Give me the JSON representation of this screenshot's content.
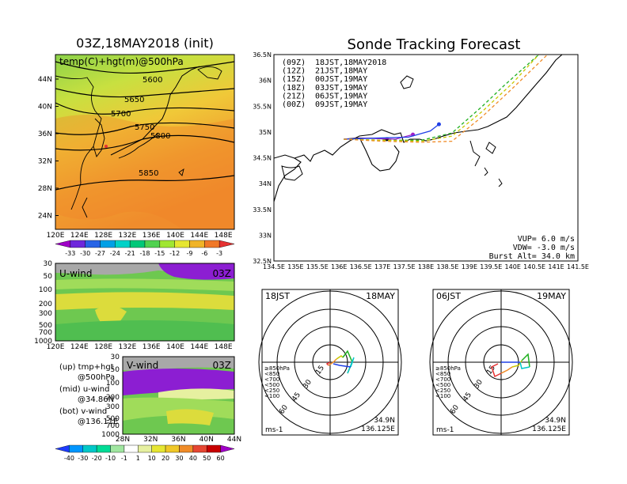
{
  "left_title": "03Z,18MAY2018 (init)",
  "right_title": "Sonde Tracking Forecast",
  "map500": {
    "label": "temp(C)+hgt(m)@500hPa",
    "lat_labels": [
      "44N",
      "40N",
      "36N",
      "32N",
      "28N",
      "24N"
    ],
    "lon_labels": [
      "120E",
      "124E",
      "128E",
      "132E",
      "136E",
      "140E",
      "144E",
      "148E"
    ],
    "contours": [
      "5600",
      "5650",
      "5700",
      "5750",
      "5800",
      "5850"
    ],
    "colorbar": [
      "-33",
      "-30",
      "-27",
      "-24",
      "-21",
      "-18",
      "-15",
      "-12",
      "-9",
      "-6",
      "-3"
    ],
    "colorbar_colors": [
      "#a000c8",
      "#6e28dc",
      "#2864e6",
      "#00a0e6",
      "#00d2c8",
      "#00c878",
      "#50d250",
      "#a0e632",
      "#e6e632",
      "#f0b428",
      "#f07828",
      "#e63232"
    ]
  },
  "uwind": {
    "label": "U-wind",
    "time": "03Z",
    "p_labels": [
      "30",
      "50",
      "100",
      "200",
      "300",
      "500",
      "700",
      "1000"
    ],
    "lon_labels": [
      "120E",
      "124E",
      "128E",
      "132E",
      "136E",
      "140E",
      "144E",
      "148E"
    ]
  },
  "vwind": {
    "label": "V-wind",
    "time": "03Z",
    "p_labels": [
      "30",
      "50",
      "100",
      "200",
      "300",
      "500",
      "700",
      "1000"
    ],
    "lat_labels": [
      "28N",
      "32N",
      "36N",
      "40N",
      "44N"
    ]
  },
  "notes": [
    {
      "a": "(up)  tmp+hgt",
      "b": "@500hPa"
    },
    {
      "a": "(mid) u-wind",
      "b": "@34.86N"
    },
    {
      "a": "(bot) v-wind",
      "b": "@136.11E"
    }
  ],
  "wind_colorbar": [
    "-40",
    "-30",
    "-20",
    "-10",
    "-1",
    "1",
    "10",
    "20",
    "30",
    "40",
    "50",
    "60"
  ],
  "wind_colorbar_colors": [
    "#1e3cff",
    "#0096ff",
    "#00c8c8",
    "#00dc96",
    "#a0e6a0",
    "#ffffff",
    "#e6f0a0",
    "#e6e632",
    "#f0c828",
    "#f08c28",
    "#e64632",
    "#c80000",
    "#a000c8"
  ],
  "track": {
    "lat_labels": [
      "36.5N",
      "36N",
      "35.5N",
      "35N",
      "34.5N",
      "34N",
      "33.5N",
      "33N",
      "32.5N"
    ],
    "lon_labels": [
      "134.5E",
      "135E",
      "135.5E",
      "136E",
      "136.5E",
      "137E",
      "137.5E",
      "138E",
      "138.5E",
      "139E",
      "139.5E",
      "140E",
      "140.5E",
      "141E",
      "141.5E"
    ],
    "legend": [
      {
        "code": "(09Z)",
        "time": "18JST,18MAY2018",
        "color": "#000000"
      },
      {
        "code": "(12Z)",
        "time": "21JST,18MAY",
        "color": "#a020c8"
      },
      {
        "code": "(15Z)",
        "time": "00JST,19MAY",
        "color": "#2040e6"
      },
      {
        "code": "(18Z)",
        "time": "03JST,19MAY",
        "color": "#20b020"
      },
      {
        "code": "(21Z)",
        "time": "06JST,19MAY",
        "color": "#c8c800"
      },
      {
        "code": "(00Z)",
        "time": "09JST,19MAY",
        "color": "#f08c28"
      }
    ],
    "params": [
      "VUP=  6.0 m/s",
      "VDW= -3.0 m/s",
      "Burst Alt= 34.0 km"
    ]
  },
  "chart_data": {
    "type": "line",
    "title": "Sonde Tracking Forecast",
    "xlabel": "",
    "ylabel": "",
    "xlim": [
      134.5,
      141.5
    ],
    "ylim": [
      32.5,
      36.5
    ],
    "series": [
      {
        "name": "(09Z) 18JST,18MAY2018",
        "points": [
          [
            136.11,
            34.86
          ],
          [
            136.4,
            34.88
          ],
          [
            136.8,
            34.88
          ],
          [
            137.1,
            34.86
          ]
        ]
      },
      {
        "name": "(12Z) 21JST,18MAY",
        "points": [
          [
            136.11,
            34.86
          ],
          [
            136.6,
            34.88
          ],
          [
            137.3,
            34.86
          ],
          [
            137.7,
            34.95
          ]
        ]
      },
      {
        "name": "(15Z) 00JST,19MAY",
        "points": [
          [
            136.11,
            34.86
          ],
          [
            136.8,
            34.88
          ],
          [
            137.6,
            34.9
          ],
          [
            138.1,
            35.02
          ],
          [
            138.3,
            35.15
          ]
        ]
      },
      {
        "name": "(18Z) 03JST,19MAY",
        "points": [
          [
            136.11,
            34.86
          ],
          [
            137.0,
            34.84
          ],
          [
            137.9,
            34.84
          ],
          [
            138.6,
            34.98
          ],
          [
            139.3,
            35.5
          ],
          [
            139.8,
            35.9
          ],
          [
            140.6,
            36.5
          ]
        ]
      },
      {
        "name": "(21Z) 06JST,19MAY",
        "points": [
          [
            136.11,
            34.86
          ],
          [
            137.0,
            34.84
          ],
          [
            137.9,
            34.82
          ],
          [
            138.6,
            34.92
          ],
          [
            139.3,
            35.4
          ],
          [
            140.0,
            35.95
          ],
          [
            140.6,
            36.5
          ]
        ]
      },
      {
        "name": "(00Z) 09JST,19MAY",
        "points": [
          [
            136.11,
            34.86
          ],
          [
            137.0,
            34.82
          ],
          [
            137.9,
            34.8
          ],
          [
            138.6,
            34.82
          ],
          [
            139.3,
            35.3
          ],
          [
            140.0,
            35.85
          ],
          [
            140.8,
            36.5
          ]
        ]
      }
    ]
  },
  "hodo1": {
    "left": "18JST",
    "right": "18MAY",
    "coord1": "34.9N",
    "coord2": "136.125E",
    "unit": "ms-1",
    "rings": [
      "15",
      "30",
      "45",
      "60"
    ],
    "levels": [
      {
        "t": "≥850hPa",
        "c": "#e63232"
      },
      {
        "t": "<850",
        "c": "#f08c28"
      },
      {
        "t": "<700",
        "c": "#c8c800"
      },
      {
        "t": "<500",
        "c": "#20b020"
      },
      {
        "t": "<250",
        "c": "#00c8c8"
      },
      {
        "t": "<100",
        "c": "#2040e6"
      }
    ]
  },
  "hodo2": {
    "left": "06JST",
    "right": "19MAY",
    "coord1": "34.9N",
    "coord2": "136.125E",
    "unit": "ms-1",
    "rings": [
      "15",
      "30",
      "45",
      "60"
    ],
    "levels": [
      {
        "t": "≥850hPa",
        "c": "#e63232"
      },
      {
        "t": "<850",
        "c": "#f08c28"
      },
      {
        "t": "<700",
        "c": "#c8c800"
      },
      {
        "t": "<500",
        "c": "#20b020"
      },
      {
        "t": "<250",
        "c": "#00c8c8"
      },
      {
        "t": "<100",
        "c": "#2040e6"
      }
    ]
  }
}
